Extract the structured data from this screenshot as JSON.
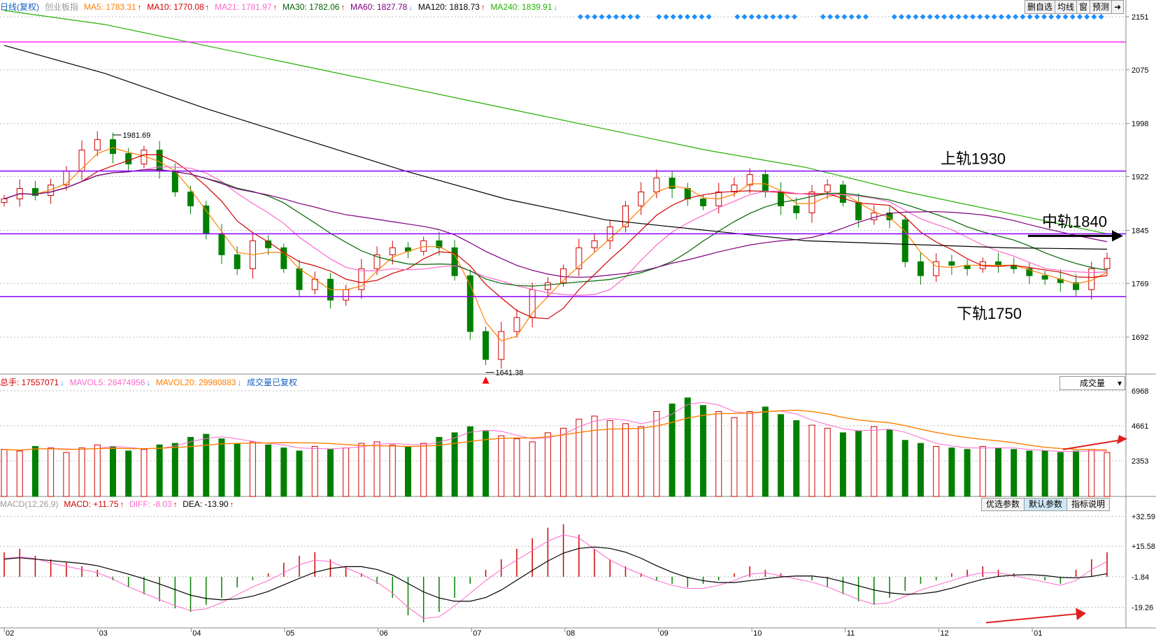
{
  "main_legend": [
    {
      "label": "日线(复权)",
      "color": "#1560bd",
      "arrow": ""
    },
    {
      "label": "创业板指",
      "color": "#999999",
      "arrow": ""
    },
    {
      "label": "MA5: 1783.31",
      "color": "#ff7f00",
      "arrow": "↑"
    },
    {
      "label": "MA10: 1770.08",
      "color": "#d00000",
      "arrow": "↑"
    },
    {
      "label": "MA21: 1781.97",
      "color": "#ff66cc",
      "arrow": "↑"
    },
    {
      "label": "MA30: 1782.06",
      "color": "#006400",
      "arrow": "↑"
    },
    {
      "label": "MA60: 1827.78",
      "color": "#800080",
      "arrow": "↓"
    },
    {
      "label": "MA120: 1818.73",
      "color": "#000000",
      "arrow": "↑"
    },
    {
      "label": "MA240: 1839.91",
      "color": "#22b000",
      "arrow": "↓"
    }
  ],
  "top_buttons": [
    "删自选",
    "均线",
    "窗",
    "预测",
    "➜"
  ],
  "price_axis": {
    "ticks": [
      "2151",
      "2075",
      "1998",
      "1922",
      "1845",
      "1769",
      "1692"
    ],
    "range": [
      1640,
      2155
    ]
  },
  "annotations": {
    "upper": "上轨1930",
    "middle": "中轨1840",
    "lower": "下轨1750",
    "high_mark": "1981.69",
    "low_mark": "1641.38"
  },
  "levels": {
    "upper": 1930,
    "middle": 1840,
    "lower": 1750
  },
  "vol_legend": [
    {
      "label": "总手: 17557071",
      "color": "#d00000",
      "arrow": "↓"
    },
    {
      "label": "MAVOL5: 28474956",
      "color": "#ff66cc",
      "arrow": "↓"
    },
    {
      "label": "MAVOL20: 29980883",
      "color": "#ff7f00",
      "arrow": "↓"
    },
    {
      "label": "成交量已复权",
      "color": "#1560bd",
      "arrow": ""
    }
  ],
  "vol_select": "成交量",
  "vol_axis": {
    "ticks": [
      "6968",
      "4661",
      "2353"
    ],
    "range": [
      0,
      7100
    ]
  },
  "macd_legend": [
    {
      "label": "MACD(12,26,9)",
      "color": "#999999",
      "arrow": ""
    },
    {
      "label": "MACD: +11.75",
      "color": "#d00000",
      "arrow": "↑"
    },
    {
      "label": "DIFF: -8.03",
      "color": "#ff66cc",
      "arrow": "↑"
    },
    {
      "label": "DEA: -13.90",
      "color": "#000000",
      "arrow": "↑"
    }
  ],
  "macd_buttons": [
    {
      "label": "优选参数",
      "selected": false
    },
    {
      "label": "默认参数",
      "selected": true
    },
    {
      "label": "指标说明",
      "selected": false
    }
  ],
  "macd_axis": {
    "ticks": [
      "+32.59",
      "+15.58",
      "-1.84",
      "-19.26"
    ],
    "range": [
      -31,
      36
    ]
  },
  "x_axis": {
    "labels": [
      "02",
      "03",
      "04",
      "05",
      "06",
      "07",
      "08",
      "09",
      "10",
      "11",
      "12",
      "01"
    ]
  },
  "colors": {
    "up": "#d00000",
    "down": "#008000",
    "guide": "#8b00ff",
    "marker": "#1e90ff"
  },
  "chart_data": [
    {
      "type": "candlestick",
      "title": "",
      "x_labels": [
        "02",
        "03",
        "04",
        "05",
        "06",
        "07",
        "08",
        "09",
        "10",
        "11",
        "12",
        "01"
      ],
      "ylim": [
        1640,
        2155
      ],
      "horizontal_levels": [
        1930,
        1840,
        1750
      ],
      "high": 1981.69,
      "low": 1641.38,
      "close_series_approx": [
        1890,
        1905,
        1895,
        1910,
        1930,
        1960,
        1975,
        1955,
        1940,
        1960,
        1930,
        1900,
        1880,
        1840,
        1810,
        1790,
        1830,
        1820,
        1790,
        1760,
        1775,
        1745,
        1760,
        1790,
        1810,
        1820,
        1815,
        1830,
        1820,
        1780,
        1700,
        1660,
        1700,
        1720,
        1760,
        1770,
        1790,
        1820,
        1830,
        1850,
        1880,
        1900,
        1920,
        1905,
        1890,
        1880,
        1900,
        1910,
        1925,
        1900,
        1880,
        1870,
        1900,
        1910,
        1885,
        1860,
        1870,
        1860,
        1800,
        1780,
        1800,
        1795,
        1790,
        1800,
        1795,
        1790,
        1780,
        1775,
        1770,
        1760,
        1790,
        1805
      ],
      "ma_values": {
        "MA5": 1783.31,
        "MA10": 1770.08,
        "MA21": 1781.97,
        "MA30": 1782.06,
        "MA60": 1827.78,
        "MA120": 1818.73,
        "MA240": 1839.91
      }
    },
    {
      "type": "bar",
      "title": "",
      "ylim": [
        0,
        7100
      ],
      "volume_series_approx": [
        3100,
        3000,
        3300,
        3200,
        2900,
        3200,
        3400,
        3300,
        3000,
        3100,
        3400,
        3500,
        3900,
        4100,
        3800,
        3500,
        3600,
        3400,
        3200,
        3000,
        3300,
        3100,
        3200,
        3500,
        3600,
        3400,
        3300,
        3500,
        3900,
        4200,
        4600,
        4300,
        4000,
        3800,
        3600,
        4200,
        4500,
        5100,
        5300,
        5000,
        4800,
        4600,
        5600,
        6100,
        6500,
        6000,
        5600,
        5200,
        5600,
        5900,
        5400,
        5000,
        4700,
        4500,
        4200,
        4300,
        4600,
        4400,
        3700,
        3500,
        3300,
        3200,
        3100,
        3300,
        3200,
        3100,
        3000,
        3000,
        2900,
        3000,
        3100,
        2900
      ],
      "values": {
        "总手": 17557071,
        "MAVOL5": 28474956,
        "MAVOL20": 29980883
      }
    },
    {
      "type": "bar",
      "title": "",
      "ylim": [
        -31,
        36
      ],
      "macd_series_approx": [
        14,
        16,
        12,
        10,
        8,
        6,
        4,
        -2,
        -6,
        -10,
        -14,
        -18,
        -20,
        -16,
        -12,
        -6,
        -2,
        2,
        8,
        12,
        14,
        10,
        6,
        2,
        -4,
        -12,
        -22,
        -26,
        -20,
        -12,
        -4,
        4,
        10,
        16,
        22,
        28,
        30,
        24,
        16,
        10,
        6,
        2,
        -2,
        -4,
        -6,
        -4,
        -2,
        2,
        6,
        4,
        2,
        0,
        -2,
        -6,
        -10,
        -14,
        -16,
        -12,
        -8,
        -4,
        -2,
        2,
        4,
        6,
        4,
        2,
        0,
        -2,
        -4,
        4,
        10,
        14
      ],
      "values": {
        "MACD": 11.75,
        "DIFF": -8.03,
        "DEA": -13.9
      }
    }
  ]
}
